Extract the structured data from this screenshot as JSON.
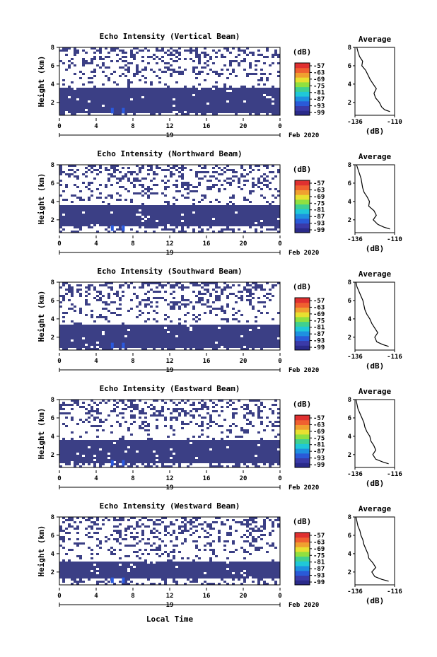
{
  "figure": {
    "xlabel": "Local Time",
    "date_label": "Feb 2020",
    "day_label": "19",
    "ylabel": "Height (km)",
    "colorbar_unit": "(dB)",
    "profile_title": "Average",
    "profile_xlabel": "(dB)",
    "colorbar_ticks": [
      "-57",
      "-63",
      "-69",
      "-75",
      "-81",
      "-87",
      "-93",
      "-99"
    ],
    "colormap": [
      "#2a2a8a",
      "#3a3aa8",
      "#2a5ad8",
      "#1e90e0",
      "#20c8d8",
      "#40d090",
      "#90e040",
      "#e8e030",
      "#f0a030",
      "#f06030",
      "#e03030"
    ],
    "field_color": "#3b3f85",
    "bright_color": "#2a5ae0"
  },
  "chart_data": [
    {
      "type": "heatmap",
      "title": "Echo Intensity (Vertical Beam)",
      "x_ticks": [
        "0",
        "4",
        "8",
        "12",
        "16",
        "20",
        "0"
      ],
      "y_ticks": [
        "2",
        "4",
        "6",
        "8"
      ],
      "xlim": [
        0,
        24
      ],
      "ylim": [
        0.6,
        8.0
      ],
      "dense_layer_km": [
        0.9,
        3.8
      ],
      "sparse_layer_km": [
        3.8,
        8.0
      ],
      "profile": {
        "x_ticks": [
          "-136",
          "-110"
        ],
        "y_ticks": [
          "2",
          "4",
          "6",
          "8"
        ],
        "xlim": [
          -136,
          -110
        ],
        "ylim": [
          0.6,
          8.0
        ],
        "height_km": [
          8.0,
          7.5,
          7.0,
          6.5,
          6.0,
          5.5,
          5.0,
          4.5,
          4.0,
          3.5,
          3.0,
          2.5,
          2.0,
          1.5,
          1.2,
          1.0
        ],
        "value_db": [
          -134.8,
          -134.0,
          -133.0,
          -131.0,
          -131.5,
          -129.0,
          -127.5,
          -126.0,
          -124.0,
          -122.0,
          -123.5,
          -122.5,
          -120.0,
          -118.5,
          -116.5,
          -113.0
        ]
      }
    },
    {
      "type": "heatmap",
      "title": "Echo Intensity (Northward Beam)",
      "x_ticks": [
        "0",
        "4",
        "8",
        "12",
        "16",
        "20",
        "0"
      ],
      "y_ticks": [
        "2",
        "4",
        "6",
        "8"
      ],
      "xlim": [
        0,
        24
      ],
      "ylim": [
        0.6,
        8.0
      ],
      "dense_layer_km": [
        1.5,
        3.7
      ],
      "sparse_layer_km": [
        3.7,
        8.0
      ],
      "profile": {
        "x_ticks": [
          "-136",
          "-110"
        ],
        "y_ticks": [
          "2",
          "4",
          "6",
          "8"
        ],
        "xlim": [
          -136,
          -110
        ],
        "ylim": [
          0.6,
          8.0
        ],
        "height_km": [
          8.0,
          7.5,
          7.0,
          6.5,
          6.0,
          5.5,
          5.0,
          4.5,
          4.0,
          3.5,
          3.0,
          2.5,
          2.0,
          1.5,
          1.2,
          1.0
        ],
        "value_db": [
          -135.0,
          -134.0,
          -133.0,
          -132.0,
          -131.5,
          -131.0,
          -130.0,
          -128.0,
          -126.5,
          -127.0,
          -123.5,
          -122.0,
          -124.0,
          -121.0,
          -117.0,
          -113.0
        ]
      }
    },
    {
      "type": "heatmap",
      "title": "Echo Intensity (Southward Beam)",
      "x_ticks": [
        "0",
        "4",
        "8",
        "12",
        "16",
        "20",
        "0"
      ],
      "y_ticks": [
        "2",
        "4",
        "6",
        "8"
      ],
      "xlim": [
        0,
        24
      ],
      "ylim": [
        0.6,
        8.0
      ],
      "dense_layer_km": [
        1.0,
        3.6
      ],
      "sparse_layer_km": [
        3.6,
        8.0
      ],
      "profile": {
        "x_ticks": [
          "-136",
          "-116"
        ],
        "y_ticks": [
          "2",
          "4",
          "6",
          "8"
        ],
        "xlim": [
          -136,
          -116
        ],
        "ylim": [
          0.6,
          8.0
        ],
        "height_km": [
          8.0,
          7.5,
          7.0,
          6.5,
          6.0,
          5.5,
          5.0,
          4.5,
          4.0,
          3.5,
          3.0,
          2.5,
          2.0,
          1.5,
          1.2,
          1.0
        ],
        "value_db": [
          -135.5,
          -135.0,
          -134.0,
          -133.0,
          -132.0,
          -131.5,
          -131.0,
          -130.0,
          -128.5,
          -127.5,
          -126.0,
          -124.5,
          -126.0,
          -125.0,
          -122.0,
          -119.0
        ]
      }
    },
    {
      "type": "heatmap",
      "title": "Echo Intensity (Eastward Beam)",
      "x_ticks": [
        "0",
        "4",
        "8",
        "12",
        "16",
        "20",
        "0"
      ],
      "y_ticks": [
        "2",
        "4",
        "6",
        "8"
      ],
      "xlim": [
        0,
        24
      ],
      "ylim": [
        0.6,
        8.0
      ],
      "dense_layer_km": [
        1.2,
        3.8
      ],
      "sparse_layer_km": [
        3.8,
        8.0
      ],
      "profile": {
        "x_ticks": [
          "-136",
          "-116"
        ],
        "y_ticks": [
          "2",
          "4",
          "6",
          "8"
        ],
        "xlim": [
          -136,
          -116
        ],
        "ylim": [
          0.6,
          8.0
        ],
        "height_km": [
          8.0,
          7.5,
          7.0,
          6.5,
          6.0,
          5.5,
          5.0,
          4.5,
          4.0,
          3.5,
          3.0,
          2.5,
          2.0,
          1.5,
          1.2,
          1.0
        ],
        "value_db": [
          -135.5,
          -135.0,
          -134.5,
          -133.5,
          -132.5,
          -131.5,
          -131.0,
          -130.0,
          -128.5,
          -128.0,
          -126.5,
          -125.5,
          -127.0,
          -125.5,
          -122.0,
          -119.0
        ]
      }
    },
    {
      "type": "heatmap",
      "title": "Echo Intensity (Westward Beam)",
      "x_ticks": [
        "0",
        "4",
        "8",
        "12",
        "16",
        "20",
        "0"
      ],
      "y_ticks": [
        "2",
        "4",
        "6",
        "8"
      ],
      "xlim": [
        0,
        24
      ],
      "ylim": [
        0.6,
        8.0
      ],
      "dense_layer_km": [
        1.5,
        3.3
      ],
      "sparse_layer_km": [
        3.3,
        8.0
      ],
      "profile": {
        "x_ticks": [
          "-136",
          "-116"
        ],
        "y_ticks": [
          "2",
          "4",
          "6",
          "8"
        ],
        "xlim": [
          -136,
          -116
        ],
        "ylim": [
          0.6,
          8.0
        ],
        "height_km": [
          8.0,
          7.5,
          7.0,
          6.5,
          6.0,
          5.5,
          5.0,
          4.5,
          4.0,
          3.5,
          3.0,
          2.5,
          2.0,
          1.5,
          1.2,
          1.0
        ],
        "value_db": [
          -135.5,
          -135.0,
          -134.5,
          -133.5,
          -133.0,
          -132.0,
          -131.5,
          -130.5,
          -129.5,
          -129.0,
          -127.0,
          -125.5,
          -127.5,
          -126.0,
          -122.5,
          -119.0
        ]
      }
    }
  ]
}
